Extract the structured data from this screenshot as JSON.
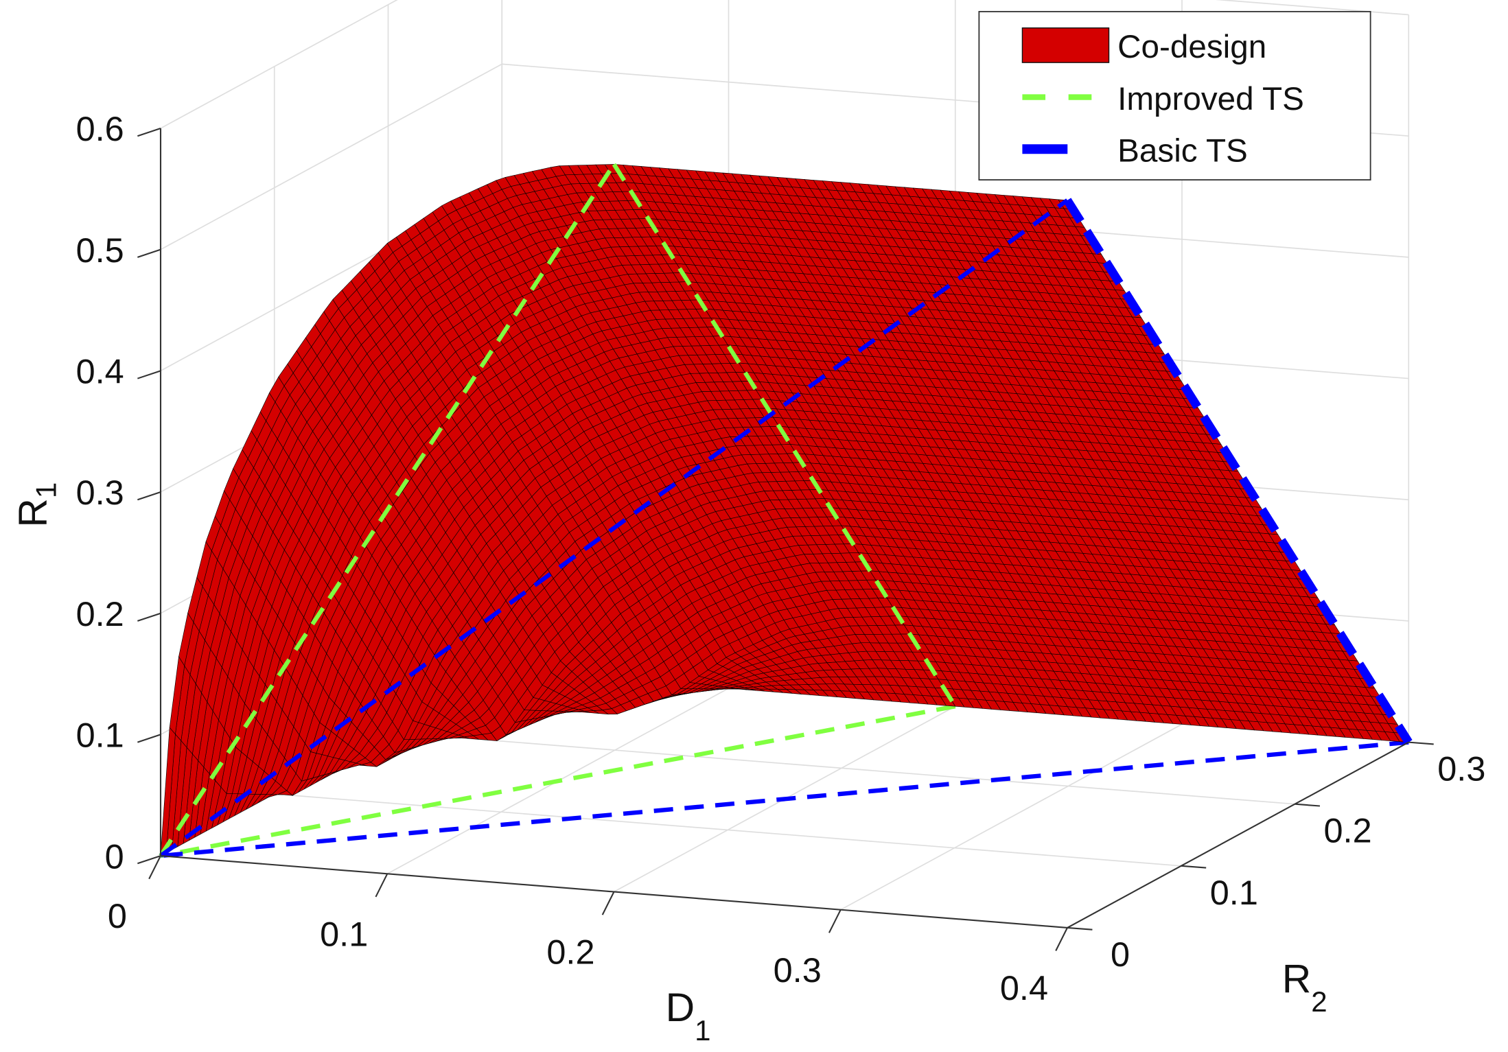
{
  "chart_data": {
    "type": "surface3d",
    "title": "",
    "xlabel": {
      "main": "D",
      "sub": "1"
    },
    "ylabel": {
      "main": "R",
      "sub": "2"
    },
    "zlabel": {
      "main": "R",
      "sub": "1"
    },
    "xlim": [
      0,
      0.4
    ],
    "ylim": [
      0,
      0.3
    ],
    "zlim": [
      0,
      0.6
    ],
    "grid": true,
    "legend_position": "top-right",
    "x_ticks": [
      "0",
      "0.1",
      "0.2",
      "0.3",
      "0.4"
    ],
    "y_ticks": [
      "0",
      "0.1",
      "0.2",
      "0.3"
    ],
    "z_ticks": [
      "0",
      "0.1",
      "0.2",
      "0.3",
      "0.4",
      "0.5",
      "0.6"
    ],
    "surface": {
      "name": "Co-design",
      "color": "#d40000",
      "D1": [
        0,
        0.005,
        0.01,
        0.02,
        0.03,
        0.05,
        0.075,
        0.1,
        0.125,
        0.15,
        0.175,
        0.2,
        0.25,
        0.3,
        0.35,
        0.4
      ],
      "R2": [
        0,
        0.05,
        0.1,
        0.15,
        0.2,
        0.25,
        0.3
      ],
      "R1": [
        [
          0,
          0,
          0,
          0,
          0,
          0,
          0
        ],
        [
          0.133,
          0.033,
          0,
          0,
          0,
          0,
          0
        ],
        [
          0.187,
          0.087,
          0,
          0,
          0,
          0,
          0
        ],
        [
          0.262,
          0.162,
          0.062,
          0,
          0,
          0,
          0
        ],
        [
          0.316,
          0.216,
          0.116,
          0.016,
          0,
          0,
          0
        ],
        [
          0.397,
          0.297,
          0.197,
          0.097,
          0,
          0,
          0
        ],
        [
          0.468,
          0.368,
          0.268,
          0.168,
          0.068,
          0,
          0
        ],
        [
          0.52,
          0.42,
          0.32,
          0.22,
          0.12,
          0.02,
          0
        ],
        [
          0.556,
          0.456,
          0.356,
          0.256,
          0.156,
          0.056,
          0
        ],
        [
          0.581,
          0.481,
          0.381,
          0.281,
          0.181,
          0.081,
          0
        ],
        [
          0.595,
          0.495,
          0.395,
          0.295,
          0.195,
          0.095,
          0
        ],
        [
          0.6,
          0.5,
          0.4,
          0.3,
          0.2,
          0.1,
          0
        ],
        [
          0.6,
          0.5,
          0.4,
          0.3,
          0.2,
          0.1,
          0
        ],
        [
          0.6,
          0.5,
          0.4,
          0.3,
          0.2,
          0.1,
          0
        ],
        [
          0.6,
          0.5,
          0.4,
          0.3,
          0.2,
          0.1,
          0
        ],
        [
          0.6,
          0.5,
          0.4,
          0.3,
          0.2,
          0.1,
          0
        ]
      ]
    },
    "lines": [
      {
        "name": "Improved TS",
        "color": "#80ff40",
        "style": "dashed",
        "points": [
          [
            0,
            0,
            0
          ],
          [
            0.2,
            0,
            0.6
          ],
          [
            0.2,
            0.3,
            0
          ],
          [
            0,
            0,
            0
          ]
        ]
      },
      {
        "name": "Basic TS",
        "color": "#0000ff",
        "style": "dashed",
        "points": [
          [
            0,
            0,
            0
          ],
          [
            0.4,
            0,
            0.6
          ],
          [
            0.4,
            0.3,
            0
          ],
          [
            0,
            0,
            0
          ]
        ]
      }
    ]
  },
  "legend": {
    "items": [
      {
        "label": "Co-design",
        "color": "#d40000"
      },
      {
        "label": "Improved TS",
        "color": "#80ff40"
      },
      {
        "label": "Basic TS",
        "color": "#0000ff"
      }
    ]
  }
}
